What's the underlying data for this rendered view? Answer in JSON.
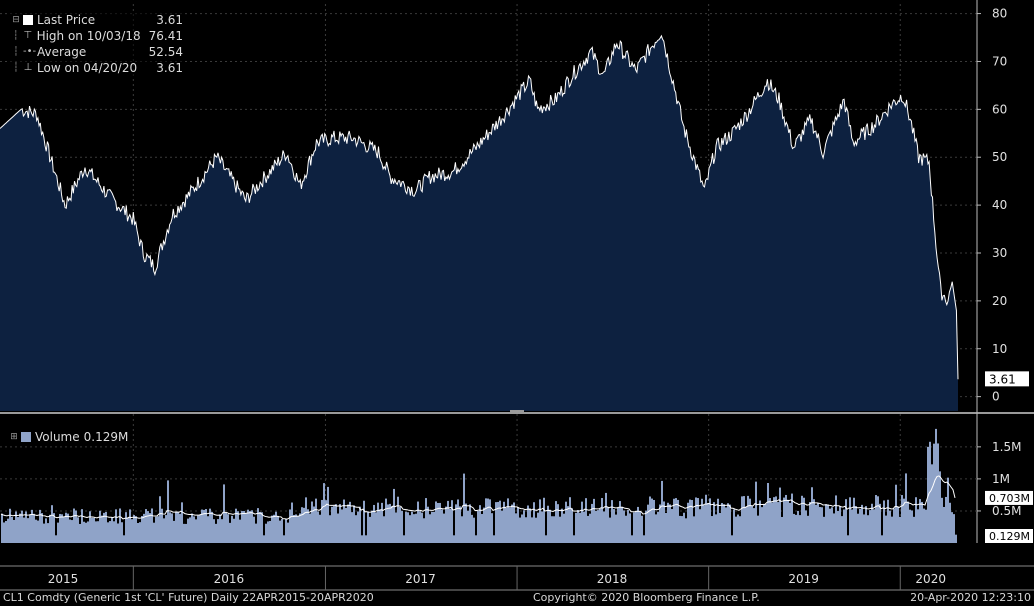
{
  "chart_data": [
    {
      "type": "area",
      "series": [
        {
          "name": "Last Price",
          "x": [
            "2015-04-22",
            "2015-06-01",
            "2015-07-01",
            "2015-08-24",
            "2015-10-01",
            "2015-11-15",
            "2016-01-01",
            "2016-01-20",
            "2016-02-11",
            "2016-03-15",
            "2016-04-15",
            "2016-06-08",
            "2016-08-02",
            "2016-09-01",
            "2016-10-19",
            "2016-11-14",
            "2016-12-15",
            "2017-01-15",
            "2017-02-22",
            "2017-04-12",
            "2017-05-04",
            "2017-06-21",
            "2017-07-20",
            "2017-09-01",
            "2017-10-15",
            "2017-12-01",
            "2018-01-25",
            "2018-02-09",
            "2018-03-15",
            "2018-04-15",
            "2018-05-22",
            "2018-06-15",
            "2018-07-10",
            "2018-08-15",
            "2018-10-03",
            "2018-11-15",
            "2018-12-24",
            "2019-01-15",
            "2019-02-15",
            "2019-03-15",
            "2019-04-23",
            "2019-05-15",
            "2019-06-12",
            "2019-07-15",
            "2019-08-07",
            "2019-09-16",
            "2019-10-03",
            "2019-11-15",
            "2019-12-15",
            "2020-01-06",
            "2020-01-20",
            "2020-02-05",
            "2020-02-25",
            "2020-03-09",
            "2020-03-18",
            "2020-04-01",
            "2020-04-09",
            "2020-04-17",
            "2020-04-20"
          ],
          "values": [
            56,
            60,
            59,
            40,
            48,
            42,
            37,
            30,
            27,
            38,
            42,
            50,
            41,
            45,
            51,
            44,
            53,
            54,
            54,
            51,
            46,
            43,
            46,
            47,
            52,
            58,
            66,
            60,
            62,
            67,
            72,
            67,
            74,
            68,
            76.41,
            56,
            43,
            52,
            55,
            59,
            66,
            62,
            52,
            58,
            51,
            62,
            53,
            57,
            61,
            63,
            58,
            50,
            49,
            32,
            22,
            20,
            24,
            18,
            3.61
          ]
        }
      ],
      "ylim": [
        -3,
        82
      ],
      "yticks": [
        "0",
        "10",
        "20",
        "30",
        "40",
        "50",
        "60",
        "70",
        "80"
      ],
      "xlabels": [
        "2015",
        "2016",
        "2017",
        "2018",
        "2019",
        "2020"
      ],
      "legend": {
        "last_price": {
          "label": "Last Price",
          "value": "3.61"
        },
        "high": {
          "label": "High on 10/03/18",
          "value": "76.41"
        },
        "average": {
          "label": "Average",
          "value": "52.54"
        },
        "low": {
          "label": "Low on 04/20/20",
          "value": "3.61"
        }
      },
      "last_value_tag": "3.61",
      "grid": true,
      "legend_position": "top-left",
      "colors": {
        "area": "#0d2140",
        "line": "#ffffff",
        "grid": "#3a3a3a",
        "tag_bg": "#ffffff"
      }
    },
    {
      "type": "bar",
      "series": [
        {
          "name": "Volume",
          "summary": "average ~0.5M daily contracts; peak ~1.78M in Mar 2020; last 0.129M"
        },
        {
          "name": "Moving average",
          "summary": "smoothed line ~0.4-0.6M, ends at 0.703M"
        }
      ],
      "ylim": [
        0,
        1.95
      ],
      "yticks": [
        "0.5M",
        "1M",
        "1.5M"
      ],
      "legend": {
        "label": "Volume",
        "value": "0.129M"
      },
      "tags": [
        "0.703M",
        "0.129M"
      ],
      "legend_position": "top-left",
      "colors": {
        "bar": "#8fa3c8",
        "line": "#ffffff"
      }
    }
  ],
  "footer": {
    "ticker": "CL1 Comdty (Generic 1st 'CL' Future)  Daily 22APR2015-20APR2020",
    "copyright": "Copyright© 2020 Bloomberg Finance L.P.",
    "timestamp": "20-Apr-2020  12:23:10"
  }
}
